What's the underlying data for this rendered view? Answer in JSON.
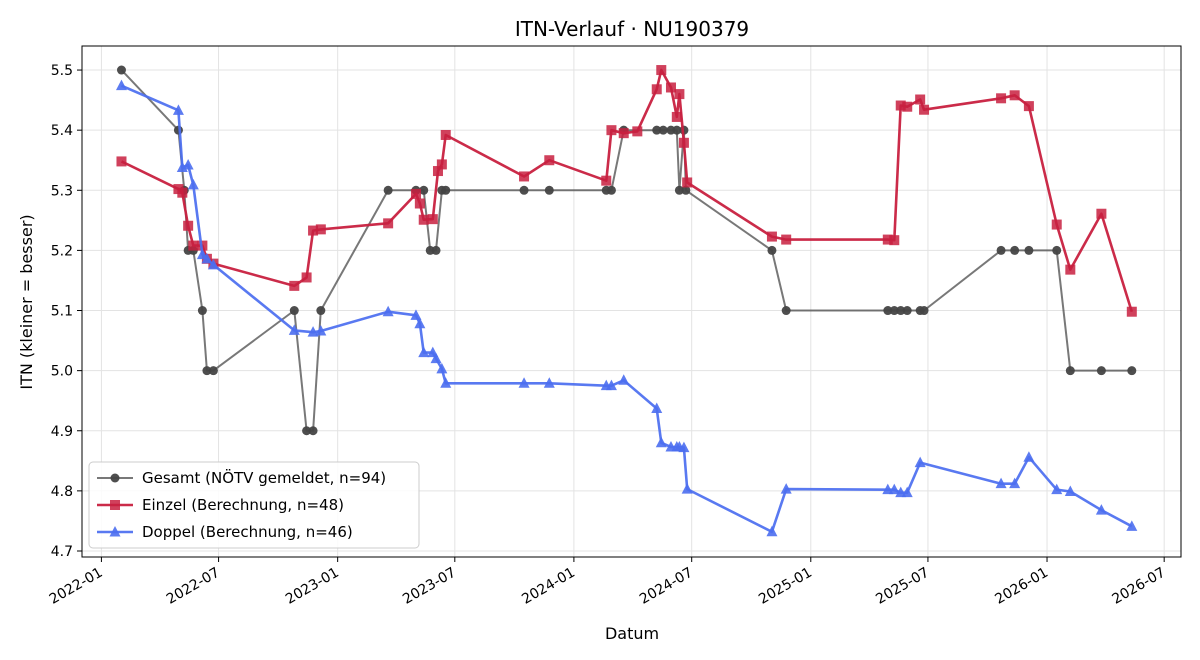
{
  "chart_data": {
    "type": "line",
    "title": "ITN-Verlauf · NU190379",
    "xlabel": "Datum",
    "ylabel": "ITN  (kleiner = besser)",
    "ylim": [
      4.69,
      5.54
    ],
    "xlim": [
      "2021-12-02",
      "2026-07-27"
    ],
    "x_ticks": [
      "2022-01",
      "2022-07",
      "2023-01",
      "2023-07",
      "2024-01",
      "2024-07",
      "2025-01",
      "2025-07",
      "2026-01",
      "2026-07"
    ],
    "y_ticks": [
      "4.7",
      "4.8",
      "4.9",
      "5.0",
      "5.1",
      "5.2",
      "5.3",
      "5.4",
      "5.5"
    ],
    "grid": true,
    "legend_position": "lower-left",
    "series": [
      {
        "name": "Gesamt (NÖTV gemeldet, n=94)",
        "color": "#444444",
        "marker": "circle",
        "points": [
          [
            "2022-02-01",
            5.5
          ],
          [
            "2022-04-30",
            5.4
          ],
          [
            "2022-05-09",
            5.3
          ],
          [
            "2022-05-15",
            5.2
          ],
          [
            "2022-05-23",
            5.2
          ],
          [
            "2022-06-06",
            5.1
          ],
          [
            "2022-06-13",
            5.0
          ],
          [
            "2022-06-23",
            5.0
          ],
          [
            "2022-10-26",
            5.1
          ],
          [
            "2022-11-14",
            4.9
          ],
          [
            "2022-11-24",
            4.9
          ],
          [
            "2022-12-06",
            5.1
          ],
          [
            "2023-03-20",
            5.3
          ],
          [
            "2023-05-02",
            5.3
          ],
          [
            "2023-05-14",
            5.3
          ],
          [
            "2023-05-24",
            5.2
          ],
          [
            "2023-06-02",
            5.2
          ],
          [
            "2023-06-11",
            5.3
          ],
          [
            "2023-06-17",
            5.3
          ],
          [
            "2023-10-16",
            5.3
          ],
          [
            "2023-11-24",
            5.3
          ],
          [
            "2024-02-20",
            5.3
          ],
          [
            "2024-02-28",
            5.3
          ],
          [
            "2024-03-18",
            5.4
          ],
          [
            "2024-05-08",
            5.4
          ],
          [
            "2024-05-18",
            5.4
          ],
          [
            "2024-05-30",
            5.4
          ],
          [
            "2024-06-08",
            5.4
          ],
          [
            "2024-06-12",
            5.3
          ],
          [
            "2024-06-19",
            5.4
          ],
          [
            "2024-06-22",
            5.3
          ],
          [
            "2024-11-02",
            5.2
          ],
          [
            "2024-11-24",
            5.1
          ],
          [
            "2025-04-30",
            5.1
          ],
          [
            "2025-05-10",
            5.1
          ],
          [
            "2025-05-20",
            5.1
          ],
          [
            "2025-05-30",
            5.1
          ],
          [
            "2025-06-19",
            5.1
          ],
          [
            "2025-06-25",
            5.1
          ],
          [
            "2025-10-22",
            5.2
          ],
          [
            "2025-11-12",
            5.2
          ],
          [
            "2025-12-04",
            5.2
          ],
          [
            "2026-01-16",
            5.2
          ],
          [
            "2026-02-06",
            5.0
          ],
          [
            "2026-03-26",
            5.0
          ],
          [
            "2026-05-12",
            5.0
          ]
        ]
      },
      {
        "name": "Einzel (Berechnung, n=48)",
        "color": "#c8203f",
        "marker": "square",
        "points": [
          [
            "2022-02-01",
            5.348
          ],
          [
            "2022-04-30",
            5.302
          ],
          [
            "2022-05-06",
            5.296
          ],
          [
            "2022-05-15",
            5.241
          ],
          [
            "2022-05-23",
            5.208
          ],
          [
            "2022-06-06",
            5.208
          ],
          [
            "2022-06-13",
            5.186
          ],
          [
            "2022-06-23",
            5.178
          ],
          [
            "2022-10-26",
            5.141
          ],
          [
            "2022-11-14",
            5.155
          ],
          [
            "2022-11-24",
            5.233
          ],
          [
            "2022-12-06",
            5.235
          ],
          [
            "2023-03-20",
            5.245
          ],
          [
            "2023-05-02",
            5.294
          ],
          [
            "2023-05-08",
            5.278
          ],
          [
            "2023-05-14",
            5.251
          ],
          [
            "2023-05-28",
            5.252
          ],
          [
            "2023-06-05",
            5.332
          ],
          [
            "2023-06-11",
            5.343
          ],
          [
            "2023-06-17",
            5.392
          ],
          [
            "2023-10-16",
            5.323
          ],
          [
            "2023-11-24",
            5.35
          ],
          [
            "2024-02-20",
            5.316
          ],
          [
            "2024-02-28",
            5.4
          ],
          [
            "2024-03-18",
            5.395
          ],
          [
            "2024-04-08",
            5.398
          ],
          [
            "2024-05-08",
            5.468
          ],
          [
            "2024-05-15",
            5.5
          ],
          [
            "2024-05-30",
            5.471
          ],
          [
            "2024-06-08",
            5.422
          ],
          [
            "2024-06-12",
            5.46
          ],
          [
            "2024-06-19",
            5.379
          ],
          [
            "2024-06-24",
            5.313
          ],
          [
            "2024-11-02",
            5.223
          ],
          [
            "2024-11-24",
            5.218
          ],
          [
            "2025-04-30",
            5.218
          ],
          [
            "2025-05-10",
            5.217
          ],
          [
            "2025-05-20",
            5.441
          ],
          [
            "2025-05-30",
            5.439
          ],
          [
            "2025-06-19",
            5.451
          ],
          [
            "2025-06-25",
            5.434
          ],
          [
            "2025-10-22",
            5.453
          ],
          [
            "2025-11-12",
            5.458
          ],
          [
            "2025-12-04",
            5.44
          ],
          [
            "2026-01-16",
            5.243
          ],
          [
            "2026-02-06",
            5.168
          ],
          [
            "2026-03-26",
            5.261
          ],
          [
            "2026-05-12",
            5.098
          ]
        ]
      },
      {
        "name": "Doppel (Berechnung, n=46)",
        "color": "#4b6ef0",
        "marker": "triangle",
        "points": [
          [
            "2022-02-01",
            5.474
          ],
          [
            "2022-04-30",
            5.433
          ],
          [
            "2022-05-06",
            5.338
          ],
          [
            "2022-05-15",
            5.342
          ],
          [
            "2022-05-23",
            5.309
          ],
          [
            "2022-06-06",
            5.193
          ],
          [
            "2022-06-13",
            5.186
          ],
          [
            "2022-06-23",
            5.176
          ],
          [
            "2022-10-26",
            5.067
          ],
          [
            "2022-11-24",
            5.064
          ],
          [
            "2022-12-06",
            5.066
          ],
          [
            "2023-03-20",
            5.098
          ],
          [
            "2023-05-02",
            5.092
          ],
          [
            "2023-05-08",
            5.078
          ],
          [
            "2023-05-14",
            5.03
          ],
          [
            "2023-05-28",
            5.03
          ],
          [
            "2023-06-02",
            5.02
          ],
          [
            "2023-06-11",
            5.003
          ],
          [
            "2023-06-17",
            4.979
          ],
          [
            "2023-10-16",
            4.979
          ],
          [
            "2023-11-24",
            4.979
          ],
          [
            "2024-02-20",
            4.975
          ],
          [
            "2024-02-28",
            4.975
          ],
          [
            "2024-03-18",
            4.984
          ],
          [
            "2024-05-08",
            4.937
          ],
          [
            "2024-05-15",
            4.88
          ],
          [
            "2024-05-30",
            4.873
          ],
          [
            "2024-06-08",
            4.873
          ],
          [
            "2024-06-12",
            4.873
          ],
          [
            "2024-06-19",
            4.872
          ],
          [
            "2024-06-24",
            4.803
          ],
          [
            "2024-11-02",
            4.732
          ],
          [
            "2024-11-24",
            4.803
          ],
          [
            "2025-04-30",
            4.802
          ],
          [
            "2025-05-10",
            4.802
          ],
          [
            "2025-05-20",
            4.797
          ],
          [
            "2025-05-30",
            4.797
          ],
          [
            "2025-06-19",
            4.847
          ],
          [
            "2025-10-22",
            4.812
          ],
          [
            "2025-11-12",
            4.812
          ],
          [
            "2025-12-04",
            4.856
          ],
          [
            "2026-01-16",
            4.802
          ],
          [
            "2026-02-06",
            4.799
          ],
          [
            "2026-03-26",
            4.768
          ],
          [
            "2026-05-12",
            4.741
          ]
        ]
      }
    ]
  }
}
